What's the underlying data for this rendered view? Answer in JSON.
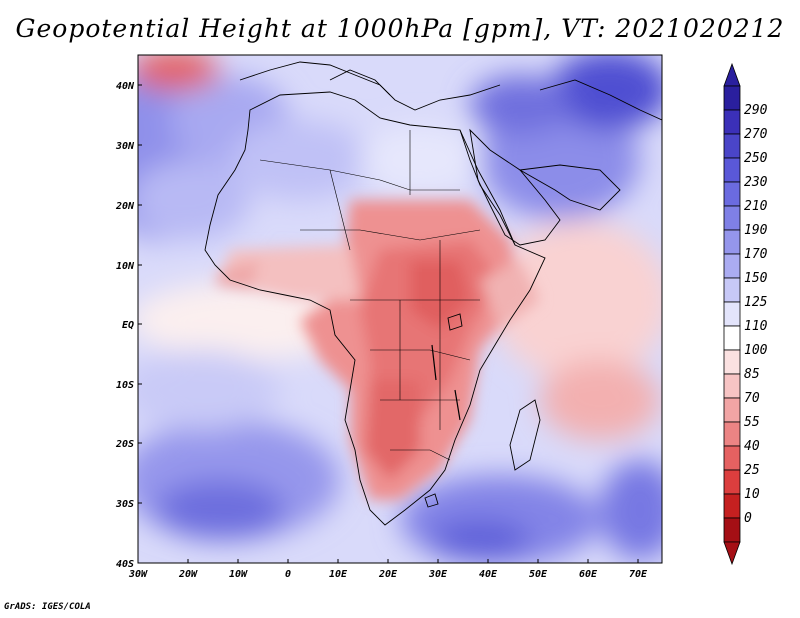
{
  "title": "Geopotential Height at 1000hPa [gpm], VT: 2021020212",
  "credit": "GrADS: IGES/COLA",
  "map": {
    "region": "Africa",
    "lon_range": [
      -30,
      75
    ],
    "lat_range": [
      -40,
      45
    ],
    "lon_ticks": [
      "30W",
      "20W",
      "10W",
      "0",
      "10E",
      "20E",
      "30E",
      "40E",
      "50E",
      "60E",
      "70E"
    ],
    "lat_ticks": [
      "40N",
      "30N",
      "20N",
      "10N",
      "EQ",
      "10S",
      "20S",
      "30S",
      "40S"
    ]
  },
  "colorbar": {
    "labels": [
      "290",
      "270",
      "250",
      "230",
      "210",
      "190",
      "170",
      "150",
      "125",
      "110",
      "100",
      "85",
      "70",
      "55",
      "40",
      "25",
      "10",
      "0"
    ],
    "colors": [
      "#2a1f9e",
      "#3b30b8",
      "#4a45c8",
      "#5a58d8",
      "#6b6be0",
      "#7f80e6",
      "#9596ec",
      "#abacf2",
      "#c7c8f7",
      "#e3e4fb",
      "#ffffff",
      "#fbe1e1",
      "#f7c4c4",
      "#f2a5a5",
      "#ec8484",
      "#e56161",
      "#dc3e3e",
      "#c52020",
      "#a50f15"
    ]
  },
  "chart_data": {
    "type": "heatmap",
    "title": "Geopotential Height at 1000hPa [gpm], VT: 2021020212",
    "variable": "Geopotential Height at 1000hPa",
    "units": "gpm",
    "valid_time": "2021020212",
    "x_ticks": [
      "30W",
      "20W",
      "10W",
      "0",
      "10E",
      "20E",
      "30E",
      "40E",
      "50E",
      "60E",
      "70E"
    ],
    "y_ticks": [
      "40N",
      "30N",
      "20N",
      "10N",
      "EQ",
      "10S",
      "20S",
      "30S",
      "40S"
    ],
    "levels": [
      0,
      10,
      25,
      40,
      55,
      70,
      85,
      100,
      110,
      125,
      150,
      170,
      190,
      210,
      230,
      250,
      270,
      290
    ]
  }
}
